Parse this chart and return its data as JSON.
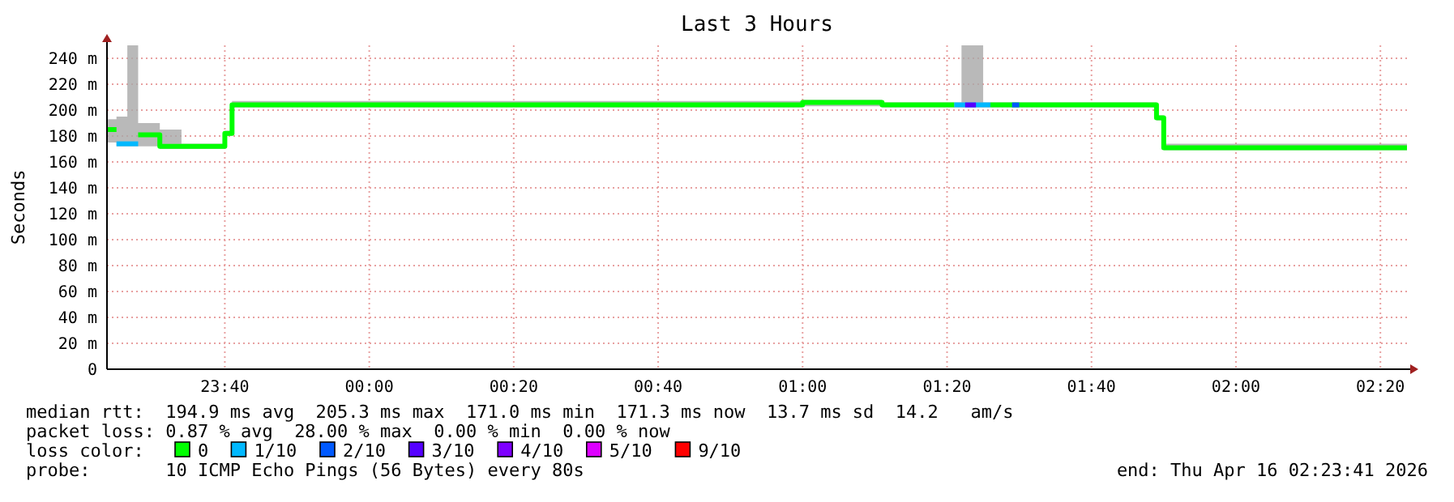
{
  "chart_data": {
    "type": "step",
    "title": "Last 3 Hours",
    "ylabel": "Seconds",
    "legend_title": "loss color:",
    "legend": "bottom",
    "grid": true,
    "xlim": [
      "2026-04-15T23:23:41",
      "2026-04-16T02:23:41"
    ],
    "xticks": [
      {
        "value": "2026-04-15T23:40",
        "label": "23:40"
      },
      {
        "value": "2026-04-16T00:00",
        "label": "00:00"
      },
      {
        "value": "2026-04-16T00:20",
        "label": "00:20"
      },
      {
        "value": "2026-04-16T00:40",
        "label": "00:40"
      },
      {
        "value": "2026-04-16T01:00",
        "label": "01:00"
      },
      {
        "value": "2026-04-16T01:20",
        "label": "01:20"
      },
      {
        "value": "2026-04-16T01:40",
        "label": "01:40"
      },
      {
        "value": "2026-04-16T02:00",
        "label": "02:00"
      },
      {
        "value": "2026-04-16T02:20",
        "label": "02:20"
      }
    ],
    "ylim": [
      0,
      250
    ],
    "yticks": [
      0,
      {
        "value": 20,
        "label": "20 m"
      },
      {
        "value": 40,
        "label": "40 m"
      },
      {
        "value": 60,
        "label": "60 m"
      },
      {
        "value": 80,
        "label": "80 m"
      },
      {
        "value": 100,
        "label": "100 m"
      },
      {
        "value": 120,
        "label": "120 m"
      },
      {
        "value": 140,
        "label": "140 m"
      },
      {
        "value": 160,
        "label": "160 m"
      },
      {
        "value": 180,
        "label": "180 m"
      },
      {
        "value": 200,
        "label": "200 m"
      },
      {
        "value": 220,
        "label": "220 m"
      },
      {
        "value": 240,
        "label": "240 m"
      }
    ],
    "series": [
      {
        "name": "0",
        "color": "#00ff00",
        "x": [
          "2026-04-15T23:23:41",
          "2026-04-15T23:25",
          "2026-04-15T23:26:30",
          "2026-04-15T23:28",
          "2026-04-15T23:31",
          "2026-04-15T23:34",
          "2026-04-15T23:40",
          "2026-04-15T23:41",
          "2026-04-16T01:00",
          "2026-04-16T01:11",
          "2026-04-16T01:21",
          "2026-04-16T01:22",
          "2026-04-16T01:25",
          "2026-04-16T01:26",
          "2026-04-16T01:49",
          "2026-04-16T01:50",
          "2026-04-16T02:23:41"
        ],
        "values": [
          185,
          null,
          null,
          181,
          172,
          172,
          182,
          204,
          206,
          204,
          null,
          null,
          null,
          204,
          194,
          171,
          171
        ],
        "lower": [
          175,
          172,
          172,
          172,
          170,
          170,
          180,
          202,
          203,
          202,
          202,
          202,
          202,
          202,
          192,
          169,
          169
        ],
        "upper": [
          193,
          195,
          250,
          190,
          185,
          174,
          184,
          207,
          208,
          206,
          206,
          250,
          206,
          206,
          196,
          174,
          174
        ]
      },
      {
        "name": "1/10",
        "color": "#00b8ff",
        "x": [
          "2026-04-16T01:21",
          "2026-04-16T01:26"
        ],
        "values": [
          204,
          204
        ]
      },
      {
        "name": "2/10",
        "color": "#0059ff",
        "x": [
          "2026-04-16T01:29",
          "2026-04-16T01:30"
        ],
        "values": [
          204,
          204
        ]
      },
      {
        "name": "3/10",
        "color": "#5500ff",
        "x": [
          "2026-04-16T01:22:30",
          "2026-04-16T01:24"
        ],
        "values": [
          204,
          204
        ]
      },
      {
        "name": "4/10",
        "color": "#7e00ff"
      },
      {
        "name": "5/10",
        "color": "#dd00ff"
      },
      {
        "name": "9/10",
        "color": "#ff0000"
      },
      {
        "color": "#00b8ff",
        "x": [
          "2026-04-15T23:25",
          "2026-04-15T23:28"
        ],
        "values": [
          174,
          174
        ]
      }
    ],
    "annotations": [
      "median rtt:  194.9 ms avg  205.3 ms max  171.0 ms min  171.3 ms now  13.7 ms sd  14.2   am/s",
      "packet loss: 0.87 % avg  28.00 % max  0.00 % min  0.00 % now",
      "probe:       10 ICMP Echo Pings (56 Bytes) every 80s",
      "end: Thu Apr 16 02:23:41 2026"
    ]
  }
}
